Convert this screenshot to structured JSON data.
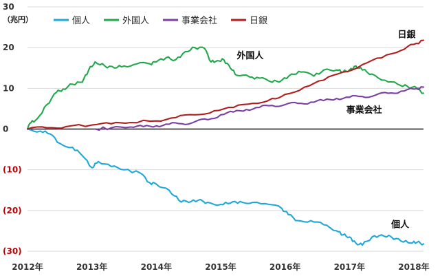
{
  "colors": {
    "個人": "#1ea7d9",
    "外国人": "#21a84a",
    "事業会社": "#7b3fa3",
    "日銀": "#b11d1d",
    "negative_tick": "#c00000"
  },
  "chart_data": {
    "type": "line",
    "title": "",
    "xlabel": "",
    "ylabel": "",
    "unit": "（兆円）",
    "grid": true,
    "legend_position": "top-left",
    "ylim": [
      -30,
      30
    ],
    "xlim": [
      2012.0,
      2018.15
    ],
    "y_ticks": [
      {
        "value": 30,
        "label": "30"
      },
      {
        "value": 20,
        "label": "20"
      },
      {
        "value": 10,
        "label": "10"
      },
      {
        "value": 0,
        "label": "0"
      },
      {
        "value": -10,
        "label": "(10)"
      },
      {
        "value": -20,
        "label": "(20)"
      },
      {
        "value": -30,
        "label": "(30)"
      }
    ],
    "x_ticks": [
      {
        "value": 2012,
        "label": "2012年"
      },
      {
        "value": 2013,
        "label": "2013年"
      },
      {
        "value": 2014,
        "label": "2014年"
      },
      {
        "value": 2015,
        "label": "2015年"
      },
      {
        "value": 2016,
        "label": "2016年"
      },
      {
        "value": 2017,
        "label": "2017年"
      },
      {
        "value": 2018,
        "label": "2018年"
      }
    ],
    "series": [
      {
        "name": "個人",
        "color_key": "個人",
        "points": [
          [
            2012.0,
            0
          ],
          [
            2012.2,
            -0.5
          ],
          [
            2012.35,
            -1.2
          ],
          [
            2012.5,
            -3.5
          ],
          [
            2012.7,
            -4.5
          ],
          [
            2012.85,
            -6.5
          ],
          [
            2013.0,
            -9.5
          ],
          [
            2013.1,
            -8.0
          ],
          [
            2013.3,
            -9.2
          ],
          [
            2013.5,
            -10.0
          ],
          [
            2013.75,
            -10.8
          ],
          [
            2013.9,
            -13.2
          ],
          [
            2014.0,
            -13.5
          ],
          [
            2014.2,
            -15.0
          ],
          [
            2014.35,
            -17.5
          ],
          [
            2014.5,
            -18.0
          ],
          [
            2014.65,
            -17.5
          ],
          [
            2014.8,
            -18.0
          ],
          [
            2015.0,
            -18.5
          ],
          [
            2015.15,
            -18.2
          ],
          [
            2015.3,
            -17.8
          ],
          [
            2015.5,
            -18.0
          ],
          [
            2015.75,
            -18.5
          ],
          [
            2015.95,
            -19.5
          ],
          [
            2016.05,
            -21.0
          ],
          [
            2016.2,
            -22.5
          ],
          [
            2016.4,
            -22.5
          ],
          [
            2016.6,
            -23.5
          ],
          [
            2016.8,
            -25.0
          ],
          [
            2016.9,
            -26.0
          ],
          [
            2017.0,
            -26.5
          ],
          [
            2017.1,
            -28.0
          ],
          [
            2017.2,
            -28.5
          ],
          [
            2017.35,
            -26.5
          ],
          [
            2017.5,
            -26.0
          ],
          [
            2017.65,
            -26.5
          ],
          [
            2017.8,
            -27.5
          ],
          [
            2017.95,
            -28.0
          ],
          [
            2018.05,
            -27.8
          ],
          [
            2018.15,
            -28.2
          ]
        ]
      },
      {
        "name": "外国人",
        "color_key": "外国人",
        "points": [
          [
            2012.0,
            0
          ],
          [
            2012.05,
            1.5
          ],
          [
            2012.15,
            2.5
          ],
          [
            2012.3,
            6.0
          ],
          [
            2012.45,
            9.0
          ],
          [
            2012.55,
            9.8
          ],
          [
            2012.7,
            11.0
          ],
          [
            2012.85,
            11.5
          ],
          [
            2012.95,
            14.5
          ],
          [
            2013.05,
            16.5
          ],
          [
            2013.2,
            15.5
          ],
          [
            2013.35,
            15.0
          ],
          [
            2013.5,
            15.5
          ],
          [
            2013.7,
            16.0
          ],
          [
            2013.9,
            16.0
          ],
          [
            2014.0,
            16.5
          ],
          [
            2014.15,
            17.5
          ],
          [
            2014.3,
            17.0
          ],
          [
            2014.45,
            19.0
          ],
          [
            2014.6,
            20.0
          ],
          [
            2014.75,
            19.8
          ],
          [
            2014.85,
            16.5
          ],
          [
            2014.95,
            16.8
          ],
          [
            2015.05,
            17.0
          ],
          [
            2015.15,
            15.0
          ],
          [
            2015.25,
            13.2
          ],
          [
            2015.45,
            12.8
          ],
          [
            2015.6,
            12.5
          ],
          [
            2015.8,
            11.5
          ],
          [
            2015.95,
            12.0
          ],
          [
            2016.1,
            13.5
          ],
          [
            2016.25,
            14.0
          ],
          [
            2016.45,
            13.0
          ],
          [
            2016.6,
            14.5
          ],
          [
            2016.8,
            14.5
          ],
          [
            2016.9,
            14.0
          ],
          [
            2017.0,
            14.5
          ],
          [
            2017.1,
            15.5
          ],
          [
            2017.2,
            14.5
          ],
          [
            2017.35,
            13.5
          ],
          [
            2017.55,
            12.0
          ],
          [
            2017.75,
            11.0
          ],
          [
            2017.9,
            10.5
          ],
          [
            2018.05,
            10.0
          ],
          [
            2018.15,
            8.8
          ]
        ]
      },
      {
        "name": "事業会社",
        "color_key": "事業会社",
        "points": [
          [
            2013.05,
            0
          ],
          [
            2013.3,
            0.3
          ],
          [
            2013.6,
            0.5
          ],
          [
            2013.8,
            0.6
          ],
          [
            2014.0,
            0.8
          ],
          [
            2014.2,
            1.2
          ],
          [
            2014.4,
            1.3
          ],
          [
            2014.6,
            1.8
          ],
          [
            2014.8,
            2.3
          ],
          [
            2015.0,
            3.5
          ],
          [
            2015.2,
            4.2
          ],
          [
            2015.4,
            4.8
          ],
          [
            2015.6,
            5.3
          ],
          [
            2015.8,
            5.8
          ],
          [
            2016.0,
            6.0
          ],
          [
            2016.2,
            6.3
          ],
          [
            2016.4,
            6.6
          ],
          [
            2016.6,
            7.0
          ],
          [
            2016.8,
            7.5
          ],
          [
            2017.0,
            7.8
          ],
          [
            2017.2,
            8.0
          ],
          [
            2017.4,
            8.3
          ],
          [
            2017.6,
            8.8
          ],
          [
            2017.8,
            9.3
          ],
          [
            2018.0,
            9.8
          ],
          [
            2018.15,
            10.3
          ]
        ]
      },
      {
        "name": "日銀",
        "color_key": "日銀",
        "points": [
          [
            2012.0,
            0
          ],
          [
            2012.3,
            0.3
          ],
          [
            2012.6,
            0.6
          ],
          [
            2013.0,
            1.0
          ],
          [
            2013.3,
            1.3
          ],
          [
            2013.6,
            1.6
          ],
          [
            2014.0,
            2.0
          ],
          [
            2014.3,
            2.8
          ],
          [
            2014.6,
            3.5
          ],
          [
            2014.9,
            4.5
          ],
          [
            2015.2,
            5.3
          ],
          [
            2015.5,
            6.3
          ],
          [
            2015.8,
            7.5
          ],
          [
            2016.0,
            8.5
          ],
          [
            2016.3,
            10.3
          ],
          [
            2016.6,
            12.0
          ],
          [
            2016.9,
            14.0
          ],
          [
            2017.2,
            15.8
          ],
          [
            2017.5,
            17.5
          ],
          [
            2017.8,
            19.3
          ],
          [
            2018.0,
            20.8
          ],
          [
            2018.15,
            21.8
          ]
        ]
      }
    ],
    "annotations": [
      {
        "text": "外国人",
        "x": 2015.25,
        "y": 17.3,
        "series": "外国人"
      },
      {
        "text": "日銀",
        "x": 2017.75,
        "y": 22.5,
        "series": "日銀"
      },
      {
        "text": "事業会社",
        "x": 2016.95,
        "y": 4.0,
        "series": "事業会社"
      },
      {
        "text": "個人",
        "x": 2017.65,
        "y": -24.2,
        "series": "個人"
      }
    ],
    "legend": [
      {
        "label": "個人",
        "color_key": "個人"
      },
      {
        "label": "外国人",
        "color_key": "外国人"
      },
      {
        "label": "事業会社",
        "color_key": "事業会社"
      },
      {
        "label": "日銀",
        "color_key": "日銀"
      }
    ]
  }
}
